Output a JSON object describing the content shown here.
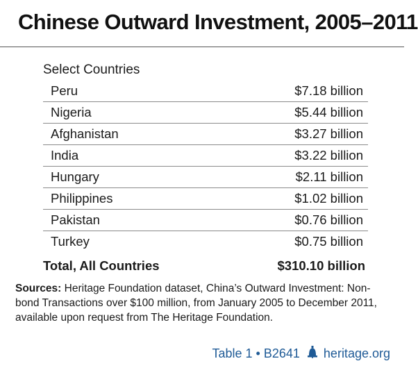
{
  "title": "Chinese Outward Investment, 2005–2011",
  "section_label": "Select Countries",
  "rows": [
    {
      "country": "Peru",
      "value": "$7.18 billion"
    },
    {
      "country": "Nigeria",
      "value": "$5.44 billion"
    },
    {
      "country": "Afghanistan",
      "value": "$3.27 billion"
    },
    {
      "country": "India",
      "value": "$3.22 billion"
    },
    {
      "country": "Hungary",
      "value": "$2.11 billion"
    },
    {
      "country": "Philippines",
      "value": "$1.02 billion"
    },
    {
      "country": "Pakistan",
      "value": "$0.76 billion"
    },
    {
      "country": "Turkey",
      "value": "$0.75 billion"
    }
  ],
  "total": {
    "label": "Total, All Countries",
    "value": "$310.10 billion"
  },
  "sources": {
    "label": "Sources:",
    "text": "Heritage Foundation dataset, China’s Outward Investment: Non-bond Transactions over $100 million, from January 2005 to December 2011, available upon request from The Heritage Foundation."
  },
  "footer": {
    "table_id": "Table 1 • B2641",
    "site": "heritage.org",
    "logo_icon": "liberty-bell-icon",
    "accent_color": "#1e5a96"
  }
}
